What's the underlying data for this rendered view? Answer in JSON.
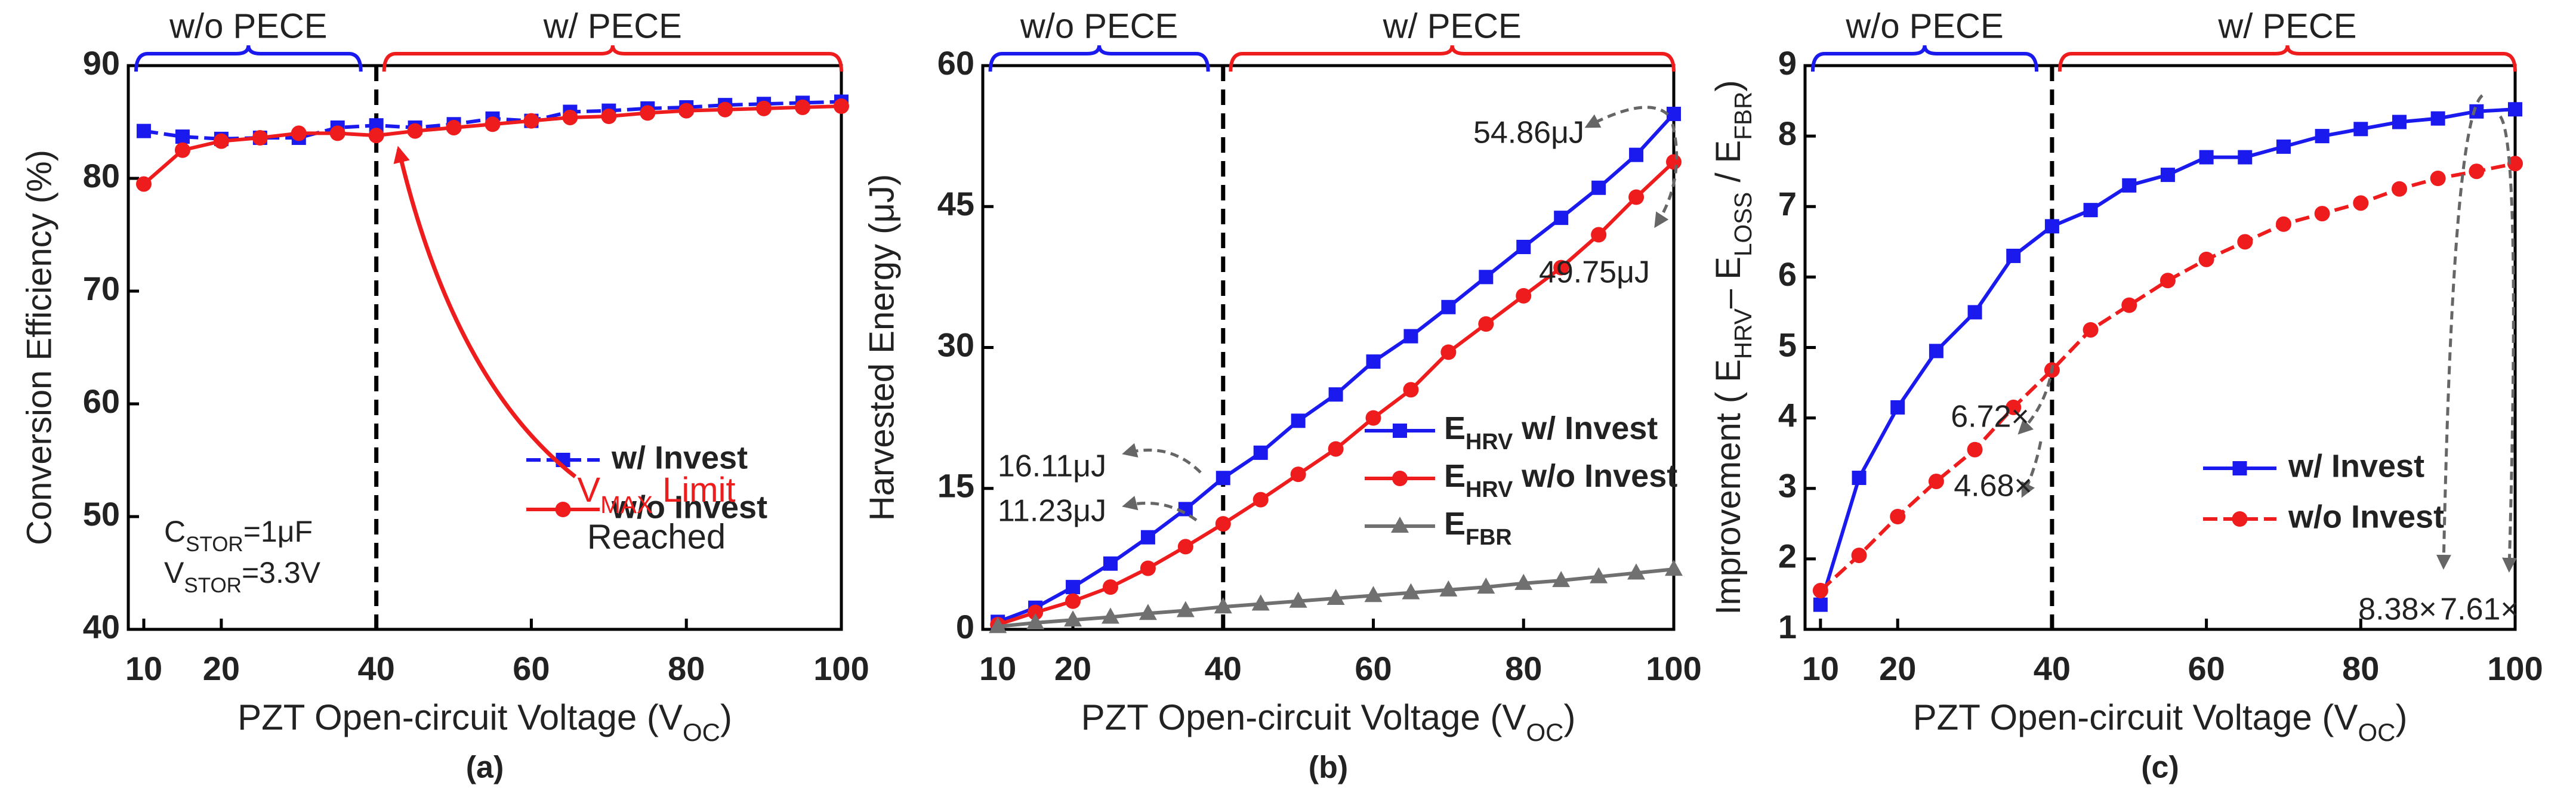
{
  "chart_data": [
    {
      "type": "line",
      "panel": "(a)",
      "xlabel": [
        "PZT Open-circuit Voltage (V",
        "OC",
        ")"
      ],
      "ylabel": "Conversion Efficiency (%)",
      "x": [
        10,
        15,
        20,
        25,
        30,
        35,
        40,
        45,
        50,
        55,
        60,
        65,
        70,
        75,
        80,
        85,
        90,
        95,
        100
      ],
      "xlim": [
        8,
        100
      ],
      "xticks": [
        10,
        20,
        40,
        60,
        80,
        100
      ],
      "ylim": [
        40,
        90
      ],
      "yticks": [
        40,
        50,
        60,
        70,
        80,
        90
      ],
      "divider": 40,
      "regions": [
        {
          "label": "w/o PECE",
          "from": 9,
          "to": 38,
          "color": "#1a1aee"
        },
        {
          "label": "w/ PECE",
          "from": 41,
          "to": 100,
          "color": "#ee1c1c"
        }
      ],
      "legend": "lower right",
      "series": [
        {
          "name": "w/  Invest",
          "color": "#1a1aee",
          "marker": "square",
          "dashed": true,
          "values": [
            84.2,
            83.7,
            83.5,
            83.6,
            83.6,
            84.5,
            84.7,
            84.5,
            84.8,
            85.3,
            85.1,
            85.9,
            86.0,
            86.2,
            86.3,
            86.5,
            86.6,
            86.7,
            86.8
          ]
        },
        {
          "name": "w/o  Invest",
          "color": "#ee1c1c",
          "marker": "circle",
          "dashed": false,
          "values": [
            79.5,
            82.5,
            83.3,
            83.6,
            84.0,
            84.0,
            83.8,
            84.2,
            84.5,
            84.8,
            85.1,
            85.4,
            85.5,
            85.8,
            86.0,
            86.1,
            86.2,
            86.3,
            86.4
          ]
        }
      ],
      "annotations": [
        {
          "text": [
            "V",
            "MAX",
            " Limit"
          ],
          "color": "#ee1c1c"
        },
        {
          "text": "Reached",
          "color": "#ee1c1c"
        },
        {
          "text": [
            "C",
            "STOR",
            "=1μF"
          ],
          "color": "#222222"
        },
        {
          "text": [
            "V",
            "STOR",
            "=3.3V"
          ],
          "color": "#222222"
        }
      ]
    },
    {
      "type": "line",
      "panel": "(b)",
      "xlabel": [
        "PZT Open-circuit Voltage (V",
        "OC",
        ")"
      ],
      "ylabel": "Harvested Energy (μJ)",
      "x": [
        10,
        15,
        20,
        25,
        30,
        35,
        40,
        45,
        50,
        55,
        60,
        65,
        70,
        75,
        80,
        85,
        90,
        95,
        100
      ],
      "xlim": [
        8,
        100
      ],
      "xticks": [
        10,
        20,
        40,
        60,
        80,
        100
      ],
      "ylim": [
        0,
        60
      ],
      "yticks": [
        0,
        15,
        30,
        45,
        60
      ],
      "divider": 40,
      "regions": [
        {
          "label": "w/o PECE",
          "from": 9,
          "to": 38,
          "color": "#1a1aee"
        },
        {
          "label": "w/ PECE",
          "from": 41,
          "to": 100,
          "color": "#ee1c1c"
        }
      ],
      "legend": "right",
      "series": [
        {
          "name": [
            "E",
            "HRV",
            " w/ Invest"
          ],
          "color": "#1a1aee",
          "marker": "square",
          "dashed": false,
          "values": [
            0.8,
            2.3,
            4.5,
            7.0,
            9.8,
            12.8,
            16.11,
            18.8,
            22.2,
            25.0,
            28.5,
            31.2,
            34.3,
            37.5,
            40.7,
            43.8,
            47.0,
            50.5,
            54.86
          ]
        },
        {
          "name": [
            "E",
            "HRV",
            " w/o Invest"
          ],
          "color": "#ee1c1c",
          "marker": "circle",
          "dashed": false,
          "values": [
            0.5,
            1.8,
            3.0,
            4.5,
            6.5,
            8.8,
            11.23,
            13.8,
            16.5,
            19.2,
            22.5,
            25.5,
            29.5,
            32.5,
            35.5,
            38.5,
            42.0,
            46.0,
            49.75
          ]
        },
        {
          "name": [
            "E",
            "FBR"
          ],
          "color": "#707070",
          "marker": "triangle",
          "dashed": false,
          "values": [
            0.3,
            0.7,
            1.0,
            1.3,
            1.7,
            2.0,
            2.4,
            2.7,
            3.0,
            3.3,
            3.6,
            3.9,
            4.2,
            4.5,
            4.9,
            5.2,
            5.6,
            6.0,
            6.4
          ]
        }
      ],
      "annotations": [
        {
          "text": "54.86μJ",
          "color": "#1a1aee"
        },
        {
          "text": "49.75μJ",
          "color": "#ee1c1c"
        },
        {
          "text": "16.11μJ",
          "color": "#1a1aee"
        },
        {
          "text": "11.23μJ",
          "color": "#ee1c1c"
        }
      ]
    },
    {
      "type": "line",
      "panel": "(c)",
      "xlabel": [
        "PZT Open-circuit Voltage (V",
        "OC",
        ")"
      ],
      "ylabel": [
        "Improvement ( E",
        "HRV",
        "– E",
        "LOSS",
        " / E",
        "FBR",
        ")"
      ],
      "x": [
        10,
        15,
        20,
        25,
        30,
        35,
        40,
        45,
        50,
        55,
        60,
        65,
        70,
        75,
        80,
        85,
        90,
        95,
        100
      ],
      "xlim": [
        8,
        100
      ],
      "xticks": [
        10,
        20,
        40,
        60,
        80,
        100
      ],
      "ylim": [
        1,
        9
      ],
      "yticks": [
        1,
        2,
        3,
        4,
        5,
        6,
        7,
        8,
        9
      ],
      "divider": 40,
      "regions": [
        {
          "label": "w/o PECE",
          "from": 9,
          "to": 38,
          "color": "#1a1aee"
        },
        {
          "label": "w/ PECE",
          "from": 41,
          "to": 100,
          "color": "#ee1c1c"
        }
      ],
      "legend": "lower right",
      "series": [
        {
          "name": "w/ Invest",
          "color": "#1a1aee",
          "marker": "square",
          "dashed": false,
          "values": [
            1.35,
            3.15,
            4.15,
            4.95,
            5.5,
            6.3,
            6.72,
            6.95,
            7.3,
            7.45,
            7.7,
            7.7,
            7.85,
            8.0,
            8.1,
            8.2,
            8.25,
            8.35,
            8.38
          ]
        },
        {
          "name": "w/o Invest",
          "color": "#ee1c1c",
          "marker": "circle",
          "dashed": true,
          "values": [
            1.55,
            2.05,
            2.6,
            3.1,
            3.55,
            4.15,
            4.68,
            5.25,
            5.6,
            5.95,
            6.25,
            6.5,
            6.75,
            6.9,
            7.05,
            7.25,
            7.4,
            7.5,
            7.61
          ]
        }
      ],
      "annotations": [
        {
          "text": "6.72×",
          "color": "#1a1aee"
        },
        {
          "text": "4.68×",
          "color": "#ee1c1c"
        },
        {
          "text": "8.38×",
          "color": "#1a1aee"
        },
        {
          "text": "7.61×",
          "color": "#ee1c1c"
        }
      ]
    }
  ]
}
